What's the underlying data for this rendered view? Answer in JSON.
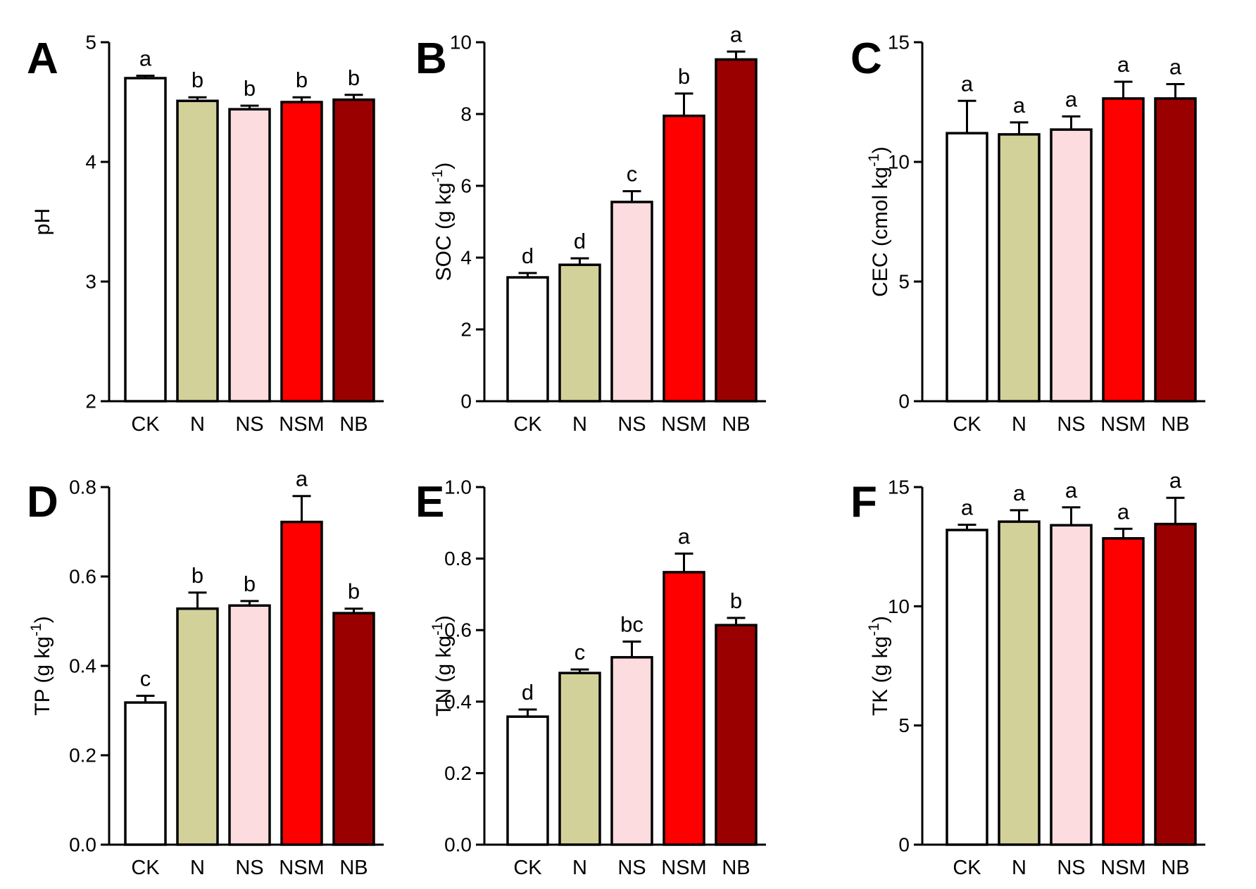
{
  "colors": {
    "CK": "#ffffff",
    "N": "#d3d19a",
    "NS": "#fcdcde",
    "NSM": "#ff0000",
    "NB": "#9b0000",
    "axis": "#000000"
  },
  "chart_data": [
    {
      "type": "bar",
      "panel": "A",
      "title": "",
      "xlabel": "",
      "ylabel_main": "pH",
      "ylabel_sup": "",
      "ylabel_tail": "",
      "categories": [
        "CK",
        "N",
        "NS",
        "NSM",
        "NB"
      ],
      "values": [
        4.7,
        4.51,
        4.44,
        4.5,
        4.52
      ],
      "errors": [
        0.02,
        0.03,
        0.03,
        0.04,
        0.04
      ],
      "significance": [
        "a",
        "b",
        "b",
        "b",
        "b"
      ],
      "ylim": [
        2,
        5
      ],
      "ticks": [
        2,
        3,
        4,
        5
      ],
      "tick_labels": [
        "2",
        "3",
        "4",
        "5"
      ],
      "grid": false
    },
    {
      "type": "bar",
      "panel": "B",
      "title": "",
      "xlabel": "",
      "ylabel_main": "SOC (g kg",
      "ylabel_sup": "-1",
      "ylabel_tail": ")",
      "categories": [
        "CK",
        "N",
        "NS",
        "NSM",
        "NB"
      ],
      "values": [
        3.45,
        3.8,
        5.55,
        7.95,
        9.52
      ],
      "errors": [
        0.12,
        0.18,
        0.3,
        0.62,
        0.22
      ],
      "significance": [
        "d",
        "d",
        "c",
        "b",
        "a"
      ],
      "ylim": [
        0,
        10
      ],
      "ticks": [
        0,
        2,
        4,
        6,
        8,
        10
      ],
      "tick_labels": [
        "0",
        "2",
        "4",
        "6",
        "8",
        "10"
      ],
      "grid": false
    },
    {
      "type": "bar",
      "panel": "C",
      "title": "",
      "xlabel": "",
      "ylabel_main": "CEC (cmol kg",
      "ylabel_sup": "-1",
      "ylabel_tail": ")",
      "categories": [
        "CK",
        "N",
        "NS",
        "NSM",
        "NB"
      ],
      "values": [
        11.2,
        11.15,
        11.35,
        12.65,
        12.65
      ],
      "errors": [
        1.35,
        0.5,
        0.55,
        0.7,
        0.6
      ],
      "significance": [
        "a",
        "a",
        "a",
        "a",
        "a"
      ],
      "ylim": [
        0,
        15
      ],
      "ticks": [
        0,
        5,
        10,
        15
      ],
      "tick_labels": [
        "0",
        "5",
        "10",
        "15"
      ],
      "grid": false
    },
    {
      "type": "bar",
      "panel": "D",
      "title": "",
      "xlabel": "",
      "ylabel_main": "TP (g kg",
      "ylabel_sup": "-1",
      "ylabel_tail": ")",
      "categories": [
        "CK",
        "N",
        "NS",
        "NSM",
        "NB"
      ],
      "values": [
        0.318,
        0.528,
        0.535,
        0.722,
        0.518
      ],
      "errors": [
        0.015,
        0.036,
        0.01,
        0.058,
        0.01
      ],
      "significance": [
        "c",
        "b",
        "b",
        "a",
        "b"
      ],
      "ylim": [
        0,
        0.8
      ],
      "ticks": [
        0,
        0.2,
        0.4,
        0.6,
        0.8
      ],
      "tick_labels": [
        "0.0",
        "0.2",
        "0.4",
        "0.6",
        "0.8"
      ],
      "grid": false
    },
    {
      "type": "bar",
      "panel": "E",
      "title": "",
      "xlabel": "",
      "ylabel_main": "TN (g kg",
      "ylabel_sup": "-1",
      "ylabel_tail": ")",
      "categories": [
        "CK",
        "N",
        "NS",
        "NSM",
        "NB"
      ],
      "values": [
        0.358,
        0.48,
        0.524,
        0.762,
        0.614
      ],
      "errors": [
        0.02,
        0.01,
        0.044,
        0.052,
        0.02
      ],
      "significance": [
        "d",
        "c",
        "bc",
        "a",
        "b"
      ],
      "ylim": [
        0,
        1
      ],
      "ticks": [
        0,
        0.2,
        0.4,
        0.6,
        0.8,
        1.0
      ],
      "tick_labels": [
        "0.0",
        "0.2",
        "0.4",
        "0.6",
        "0.8",
        "1.0"
      ],
      "grid": false
    },
    {
      "type": "bar",
      "panel": "F",
      "title": "",
      "xlabel": "",
      "ylabel_main": "TK (g kg",
      "ylabel_sup": "-1",
      "ylabel_tail": ")",
      "categories": [
        "CK",
        "N",
        "NS",
        "NSM",
        "NB"
      ],
      "values": [
        13.2,
        13.55,
        13.4,
        12.85,
        13.45
      ],
      "errors": [
        0.22,
        0.48,
        0.75,
        0.4,
        1.1
      ],
      "significance": [
        "a",
        "a",
        "a",
        "a",
        "a"
      ],
      "ylim": [
        0,
        15
      ],
      "ticks": [
        0,
        5,
        10,
        15
      ],
      "tick_labels": [
        "0",
        "5",
        "10",
        "15"
      ],
      "grid": false
    }
  ]
}
